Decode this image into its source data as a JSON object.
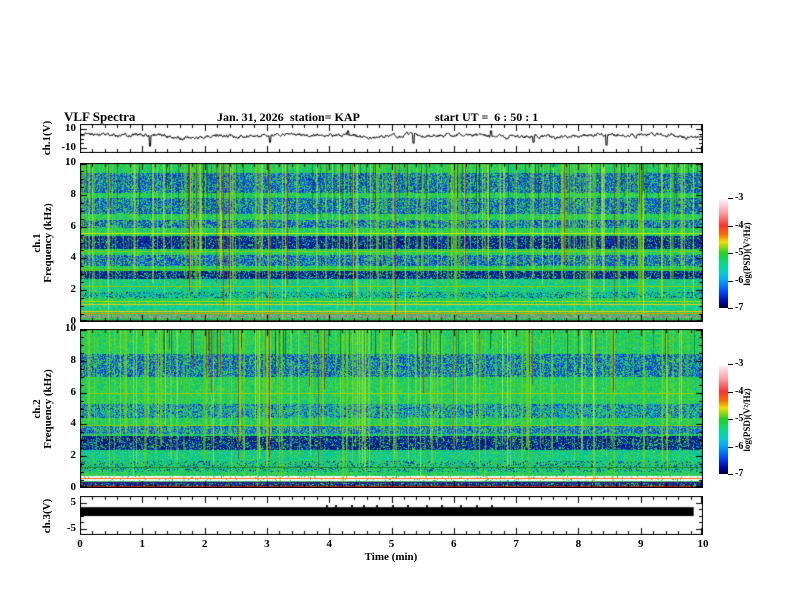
{
  "header": {
    "title": "VLF Spectra",
    "date": "Jan. 31, 2026",
    "station": "station= KAP",
    "start_ut": "start UT =  6 : 50 : 1"
  },
  "xaxis": {
    "label": "Time (min)",
    "min": 0,
    "max": 10,
    "major_ticks": [
      0,
      1,
      2,
      3,
      4,
      5,
      6,
      7,
      8,
      9,
      10
    ],
    "minor_step": 0.2
  },
  "panels": {
    "ch1_wave": {
      "ylabel": "ch.1(V)",
      "ylim": [
        -15,
        15
      ],
      "yticks": [
        10,
        -10
      ],
      "yticks_minor": [
        5,
        0,
        -5
      ]
    },
    "ch1_spec": {
      "ylabel_line1": "ch.1",
      "ylabel_line2": "Frequency (kHz)",
      "ylim": [
        0,
        10
      ],
      "yticks": [
        10,
        8,
        6,
        4,
        2,
        0
      ],
      "minor_step": 0.5
    },
    "ch2_spec": {
      "ylabel_line1": "ch.2",
      "ylabel_line2": "Frequency (kHz)",
      "ylim": [
        0,
        10
      ],
      "yticks": [
        10,
        8,
        6,
        4,
        2,
        0
      ],
      "minor_step": 0.5
    },
    "ch3_wave": {
      "ylabel": "ch.3(V)",
      "ylim": [
        -7.5,
        7.5
      ],
      "yticks": [
        5,
        -5
      ],
      "yticks_minor": [
        2.5,
        0,
        -2.5
      ]
    }
  },
  "colorbar": {
    "label": "log(PSD)(V²/Hz)",
    "ticks": [
      -3,
      -4,
      -5,
      -6,
      -7
    ],
    "lim": [
      -7,
      -3
    ],
    "gradient": [
      [
        "#ffffff",
        0
      ],
      [
        "#ffd0d8",
        6
      ],
      [
        "#ff9aa0",
        14
      ],
      [
        "#ff3030",
        25
      ],
      [
        "#ff6a00",
        33
      ],
      [
        "#f0e000",
        40
      ],
      [
        "#22d020",
        50
      ],
      [
        "#00dd88",
        60
      ],
      [
        "#00cfd0",
        68
      ],
      [
        "#00a2ff",
        75
      ],
      [
        "#0040ff",
        86
      ],
      [
        "#0000a0",
        95
      ],
      [
        "#000030",
        100
      ]
    ]
  },
  "chart_data": [
    {
      "type": "line",
      "name": "ch1-voltage-waveform",
      "ylabel": "ch.1(V)",
      "xlim": [
        0,
        10
      ],
      "ylim": [
        -15,
        15
      ],
      "yticks": [
        10,
        -10
      ],
      "color": "#000000",
      "baseline_v": 3.0,
      "noise_amp": 1.4,
      "slow_modulation": [
        {
          "amp": 1.2,
          "freq": 2.3,
          "phase": 0.4
        },
        {
          "amp": 0.7,
          "freq": 6.1,
          "phase": 1.2
        }
      ],
      "spikes": [
        {
          "t": 1.12,
          "v": -8
        },
        {
          "t": 3.05,
          "v": -4
        },
        {
          "t": 4.3,
          "v": 8
        },
        {
          "t": 5.35,
          "v": -5
        },
        {
          "t": 6.6,
          "v": 8
        },
        {
          "t": 7.28,
          "v": -4
        },
        {
          "t": 8.45,
          "v": -7
        }
      ]
    },
    {
      "type": "heatmap",
      "name": "ch1-spectrogram",
      "ylabel": "ch.1 Frequency (kHz)",
      "xlabel": "Time (min)",
      "xlim": [
        0,
        10
      ],
      "ylim": [
        0,
        10
      ],
      "yticks": [
        0,
        2,
        4,
        6,
        8,
        10
      ],
      "colorbar_lim": [
        -7,
        -3
      ],
      "base_palette": [
        "#2ecc3e",
        "#35d348",
        "#28c355",
        "#3fd83a",
        "#1fc76a",
        "#00c98e",
        "#52d83a",
        "#00c2b0"
      ],
      "bands": [
        {
          "f": [
            8.1,
            9.4
          ],
          "palette": [
            "#1a50e8",
            "#0f3cd0",
            "#2a6af0",
            "#0a2cb0",
            "#0060d8"
          ],
          "density": 0.62
        },
        {
          "f": [
            6.8,
            7.8
          ],
          "palette": [
            "#1a50e8",
            "#0f3cd0",
            "#2a6af0",
            "#0a2cb0",
            "#0060d8"
          ],
          "density": 0.6
        },
        {
          "f": [
            5.9,
            6.4
          ],
          "palette": [
            "#1a50e8",
            "#0f3cd0",
            "#2a6af0",
            "#0a2cb0"
          ],
          "density": 0.58
        },
        {
          "f": [
            4.6,
            5.4
          ],
          "palette": [
            "#0a28a8",
            "#061c80",
            "#123cc8",
            "#04145e",
            "#0a30b8"
          ],
          "density": 0.85
        },
        {
          "f": [
            3.5,
            4.2
          ],
          "palette": [
            "#1a50e8",
            "#0f3cd0",
            "#2a6af0",
            "#0a2cb0"
          ],
          "density": 0.62
        },
        {
          "f": [
            2.7,
            3.2
          ],
          "palette": [
            "#0a28a8",
            "#061c80",
            "#123cc8",
            "#04145e"
          ],
          "density": 0.82
        },
        {
          "f": [
            1.9,
            2.7
          ],
          "palette": [
            "#00c8b0",
            "#00bcd0",
            "#20d090"
          ],
          "density": 0.45
        },
        {
          "f": [
            1.5,
            1.9
          ],
          "palette": [
            "#00b4c4",
            "#0090a8",
            "#0a28a8",
            "#00c4c4"
          ],
          "density": 0.55
        },
        {
          "f": [
            0.75,
            1.1
          ],
          "palette": [
            "#00ccb8",
            "#00d4c4",
            "#10dcb0"
          ],
          "density": 0.55
        },
        {
          "f": [
            0.25,
            0.45
          ],
          "palette": [
            "#8a8a7a",
            "#9a9a8a",
            "#7a7a6e",
            "#a8a898"
          ],
          "density": 0.78
        }
      ],
      "hlines": [
        {
          "f": 5.6,
          "color": "#ccee00"
        },
        {
          "f": 4.45,
          "color": "#88cc00"
        },
        {
          "f": 3.35,
          "color": "#66bb00"
        },
        {
          "f": 2.25,
          "color": "#88cc00"
        },
        {
          "f": 1.35,
          "color": "#aadd00"
        },
        {
          "f": 1.15,
          "color": "#ffcc00"
        },
        {
          "f": 0.7,
          "color": "#ffcc00"
        },
        {
          "f": 0.55,
          "color": "#ff8800"
        },
        {
          "f": 0.12,
          "color": "#dd2200"
        },
        {
          "f": 0.04,
          "color": "#303030"
        }
      ],
      "vstripes": {
        "count": 180,
        "palette": [
          "#aadd00",
          "#88d400",
          "#ccee22",
          "#55cc11"
        ]
      },
      "dark_vstripes": {
        "count": 70,
        "color": "#0c4c20",
        "f_min": 6.5
      },
      "red_vlines": {
        "count": 11,
        "color": "#cc2200",
        "top_biased": false
      }
    },
    {
      "type": "heatmap",
      "name": "ch2-spectrogram",
      "ylabel": "ch.2 Frequency (kHz)",
      "xlabel": "Time (min)",
      "xlim": [
        0,
        10
      ],
      "ylim": [
        0,
        10
      ],
      "yticks": [
        0,
        2,
        4,
        6,
        8,
        10
      ],
      "colorbar_lim": [
        -7,
        -3
      ],
      "base_palette": [
        "#2ecc3e",
        "#35d348",
        "#28c355",
        "#3fd83a",
        "#1fc76a",
        "#00c98e",
        "#52d83a",
        "#00c2b0"
      ],
      "bands": [
        {
          "f": [
            7.0,
            8.4
          ],
          "palette": [
            "#1a50e8",
            "#0f3cd0",
            "#2a6af0",
            "#0a2cb0",
            "#0060d8"
          ],
          "density": 0.58
        },
        {
          "f": [
            4.4,
            5.3
          ],
          "palette": [
            "#1a50e8",
            "#2a6af0",
            "#00a0d8",
            "#0a2cb0"
          ],
          "density": 0.52
        },
        {
          "f": [
            3.4,
            3.9
          ],
          "palette": [
            "#1a50e8",
            "#0f3cd0",
            "#2a6af0"
          ],
          "density": 0.55
        },
        {
          "f": [
            2.4,
            3.3
          ],
          "palette": [
            "#0a28a8",
            "#061c80",
            "#123cc8",
            "#04145e"
          ],
          "density": 0.78
        },
        {
          "f": [
            1.7,
            2.4
          ],
          "palette": [
            "#00c8b0",
            "#00bcd0",
            "#20d090"
          ],
          "density": 0.42
        },
        {
          "f": [
            1.0,
            1.7
          ],
          "palette": [
            "#00b4c4",
            "#20c080",
            "#0a28a8"
          ],
          "density": 0.4
        },
        {
          "f": [
            0.45,
            0.75
          ],
          "palette": [
            "#ffffff",
            "#fff0f2",
            "#f0fff0",
            "#ffe6ea",
            "#f6f6ff"
          ],
          "density": 0.93
        },
        {
          "f": [
            0.0,
            0.4
          ],
          "palette": [
            "#0a28a8",
            "#123cc8",
            "#3a3a60",
            "#061c80",
            "#202050"
          ],
          "density": 0.78
        }
      ],
      "hlines": [
        {
          "f": 5.95,
          "color": "#9ad000"
        },
        {
          "f": 3.95,
          "color": "#88cc00"
        },
        {
          "f": 1.3,
          "color": "#228822"
        },
        {
          "f": 0.6,
          "color": "#ff6600"
        },
        {
          "f": 0.35,
          "color": "#440088"
        },
        {
          "f": 0.08,
          "color": "#dd2200"
        }
      ],
      "vstripes": {
        "count": 170,
        "palette": [
          "#aadd00",
          "#88d400",
          "#ccee22",
          "#55cc11"
        ]
      },
      "dark_vstripes": {
        "count": 40,
        "color": "#0c4c20",
        "f_min": 7.0
      },
      "red_vlines": {
        "count": 16,
        "color": "#cc2200",
        "top_biased": true
      }
    },
    {
      "type": "band",
      "name": "ch3-voltage-clipped",
      "ylabel": "ch.3(V)",
      "xlim": [
        0,
        10
      ],
      "ylim": [
        -7.5,
        7.5
      ],
      "yticks": [
        5,
        -5
      ],
      "color": "#000000",
      "band_v_top": 3.2,
      "band_v_bottom": -0.2,
      "t_start": 0,
      "t_end": 9.85,
      "nub_times": [
        3.95,
        4.1,
        4.35,
        4.55,
        4.75,
        5.0,
        5.25,
        5.55,
        5.8,
        6.1,
        6.35,
        6.6
      ]
    }
  ]
}
